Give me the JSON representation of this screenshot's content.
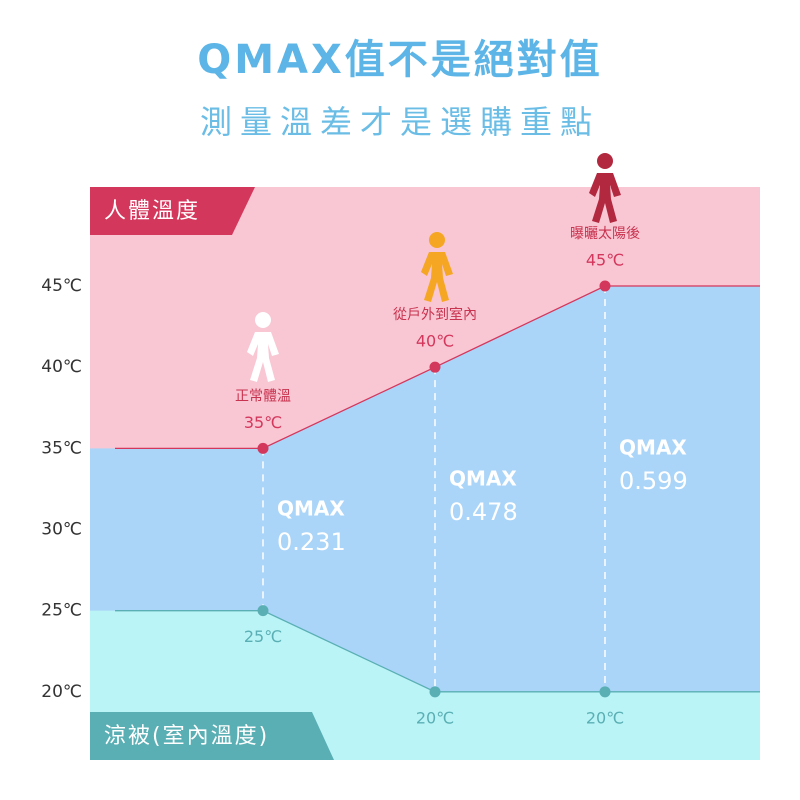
{
  "chart_data": {
    "type": "area",
    "title": "QMAX值不是絕對值",
    "subtitle": "測量溫差才是選購重點",
    "categories": [
      null,
      "正常體溫",
      "從戶外到室內",
      "曝曬太陽後",
      null
    ],
    "series": [
      {
        "name": "人體溫度",
        "color": "#d4375c",
        "values": [
          35,
          35,
          40,
          45,
          45
        ],
        "value_labels": [
          null,
          "35℃",
          "40℃",
          "45℃",
          null
        ]
      },
      {
        "name": "涼被(室內溫度)",
        "color": "#5aafb4",
        "values": [
          25,
          25,
          20,
          20,
          20
        ],
        "value_labels": [
          null,
          "25℃",
          "20℃",
          "20℃",
          null
        ]
      }
    ],
    "area_colors": [
      "#f9c6d3",
      "#abd5f8",
      "#baf4f6"
    ],
    "qmax": {
      "label": "QMAX",
      "values": [
        null,
        0.231,
        0.478,
        0.599,
        null
      ]
    },
    "ylim": [
      15.8,
      51.1
    ],
    "yticks": [
      {
        "value": 20,
        "label": "20℃"
      },
      {
        "value": 25,
        "label": "25℃"
      },
      {
        "value": 30,
        "label": "30℃"
      },
      {
        "value": 35,
        "label": "35℃"
      },
      {
        "value": 40,
        "label": "40℃"
      },
      {
        "value": 45,
        "label": "45℃"
      }
    ]
  }
}
